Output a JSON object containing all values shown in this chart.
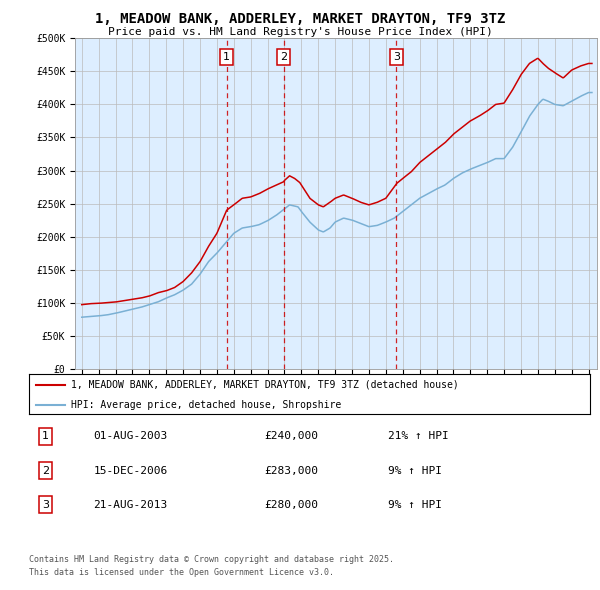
{
  "title": "1, MEADOW BANK, ADDERLEY, MARKET DRAYTON, TF9 3TZ",
  "subtitle": "Price paid vs. HM Land Registry's House Price Index (HPI)",
  "legend_line1": "1, MEADOW BANK, ADDERLEY, MARKET DRAYTON, TF9 3TZ (detached house)",
  "legend_line2": "HPI: Average price, detached house, Shropshire",
  "footer1": "Contains HM Land Registry data © Crown copyright and database right 2025.",
  "footer2": "This data is licensed under the Open Government Licence v3.0.",
  "transactions": [
    {
      "num": 1,
      "date": "01-AUG-2003",
      "date_x": 2003.58,
      "price": 240000,
      "hpi_pct": "21%"
    },
    {
      "num": 2,
      "date": "15-DEC-2006",
      "date_x": 2006.95,
      "price": 283000,
      "hpi_pct": "9%"
    },
    {
      "num": 3,
      "date": "21-AUG-2013",
      "date_x": 2013.62,
      "price": 280000,
      "hpi_pct": "9%"
    }
  ],
  "red_color": "#cc0000",
  "blue_color": "#7ab0d4",
  "background_color": "#ddeeff",
  "plot_bg_color": "#ffffff",
  "grid_color": "#bbbbbb",
  "ylim": [
    0,
    500000
  ],
  "xlim_start": 1994.6,
  "xlim_end": 2025.5,
  "hpi_points": [
    [
      1995.0,
      78000
    ],
    [
      1995.5,
      79000
    ],
    [
      1996.0,
      80000
    ],
    [
      1996.5,
      81500
    ],
    [
      1997.0,
      84000
    ],
    [
      1997.5,
      87000
    ],
    [
      1998.0,
      90000
    ],
    [
      1998.5,
      93000
    ],
    [
      1999.0,
      97000
    ],
    [
      1999.5,
      101000
    ],
    [
      2000.0,
      107000
    ],
    [
      2000.5,
      112000
    ],
    [
      2001.0,
      119000
    ],
    [
      2001.5,
      128000
    ],
    [
      2002.0,
      143000
    ],
    [
      2002.5,
      162000
    ],
    [
      2003.0,
      175000
    ],
    [
      2003.5,
      190000
    ],
    [
      2004.0,
      205000
    ],
    [
      2004.5,
      213000
    ],
    [
      2005.0,
      215000
    ],
    [
      2005.5,
      218000
    ],
    [
      2006.0,
      224000
    ],
    [
      2006.5,
      232000
    ],
    [
      2007.0,
      242000
    ],
    [
      2007.3,
      248000
    ],
    [
      2007.8,
      245000
    ],
    [
      2008.0,
      238000
    ],
    [
      2008.5,
      222000
    ],
    [
      2009.0,
      210000
    ],
    [
      2009.3,
      207000
    ],
    [
      2009.7,
      213000
    ],
    [
      2010.0,
      222000
    ],
    [
      2010.5,
      228000
    ],
    [
      2011.0,
      225000
    ],
    [
      2011.5,
      220000
    ],
    [
      2012.0,
      215000
    ],
    [
      2012.5,
      217000
    ],
    [
      2013.0,
      222000
    ],
    [
      2013.5,
      228000
    ],
    [
      2014.0,
      238000
    ],
    [
      2014.5,
      248000
    ],
    [
      2015.0,
      258000
    ],
    [
      2015.5,
      265000
    ],
    [
      2016.0,
      272000
    ],
    [
      2016.5,
      278000
    ],
    [
      2017.0,
      288000
    ],
    [
      2017.5,
      296000
    ],
    [
      2018.0,
      302000
    ],
    [
      2018.5,
      307000
    ],
    [
      2019.0,
      312000
    ],
    [
      2019.5,
      318000
    ],
    [
      2020.0,
      318000
    ],
    [
      2020.5,
      335000
    ],
    [
      2021.0,
      358000
    ],
    [
      2021.5,
      382000
    ],
    [
      2022.0,
      400000
    ],
    [
      2022.3,
      408000
    ],
    [
      2022.6,
      405000
    ],
    [
      2023.0,
      400000
    ],
    [
      2023.5,
      398000
    ],
    [
      2024.0,
      405000
    ],
    [
      2024.5,
      412000
    ],
    [
      2025.0,
      418000
    ]
  ],
  "red_points": [
    [
      1995.0,
      97000
    ],
    [
      1995.5,
      98500
    ],
    [
      1996.0,
      99000
    ],
    [
      1996.5,
      100000
    ],
    [
      1997.0,
      101000
    ],
    [
      1997.5,
      103000
    ],
    [
      1998.0,
      105000
    ],
    [
      1998.5,
      107000
    ],
    [
      1999.0,
      110000
    ],
    [
      1999.5,
      115000
    ],
    [
      2000.0,
      118000
    ],
    [
      2000.5,
      123000
    ],
    [
      2001.0,
      132000
    ],
    [
      2001.5,
      145000
    ],
    [
      2002.0,
      162000
    ],
    [
      2002.5,
      185000
    ],
    [
      2003.0,
      205000
    ],
    [
      2003.58,
      240000
    ],
    [
      2004.0,
      248000
    ],
    [
      2004.5,
      258000
    ],
    [
      2005.0,
      260000
    ],
    [
      2005.5,
      265000
    ],
    [
      2006.0,
      272000
    ],
    [
      2006.95,
      283000
    ],
    [
      2007.0,
      285000
    ],
    [
      2007.3,
      292000
    ],
    [
      2007.6,
      288000
    ],
    [
      2007.9,
      282000
    ],
    [
      2008.2,
      270000
    ],
    [
      2008.5,
      258000
    ],
    [
      2009.0,
      248000
    ],
    [
      2009.3,
      245000
    ],
    [
      2009.7,
      252000
    ],
    [
      2010.0,
      258000
    ],
    [
      2010.5,
      263000
    ],
    [
      2011.0,
      258000
    ],
    [
      2011.5,
      252000
    ],
    [
      2012.0,
      248000
    ],
    [
      2012.5,
      252000
    ],
    [
      2013.0,
      258000
    ],
    [
      2013.62,
      280000
    ],
    [
      2014.0,
      288000
    ],
    [
      2014.5,
      298000
    ],
    [
      2015.0,
      312000
    ],
    [
      2015.5,
      322000
    ],
    [
      2016.0,
      332000
    ],
    [
      2016.5,
      342000
    ],
    [
      2017.0,
      355000
    ],
    [
      2017.5,
      365000
    ],
    [
      2018.0,
      375000
    ],
    [
      2018.5,
      382000
    ],
    [
      2019.0,
      390000
    ],
    [
      2019.5,
      400000
    ],
    [
      2020.0,
      402000
    ],
    [
      2020.5,
      422000
    ],
    [
      2021.0,
      445000
    ],
    [
      2021.5,
      462000
    ],
    [
      2022.0,
      470000
    ],
    [
      2022.3,
      462000
    ],
    [
      2022.6,
      455000
    ],
    [
      2023.0,
      448000
    ],
    [
      2023.5,
      440000
    ],
    [
      2024.0,
      452000
    ],
    [
      2024.5,
      458000
    ],
    [
      2025.0,
      462000
    ]
  ]
}
